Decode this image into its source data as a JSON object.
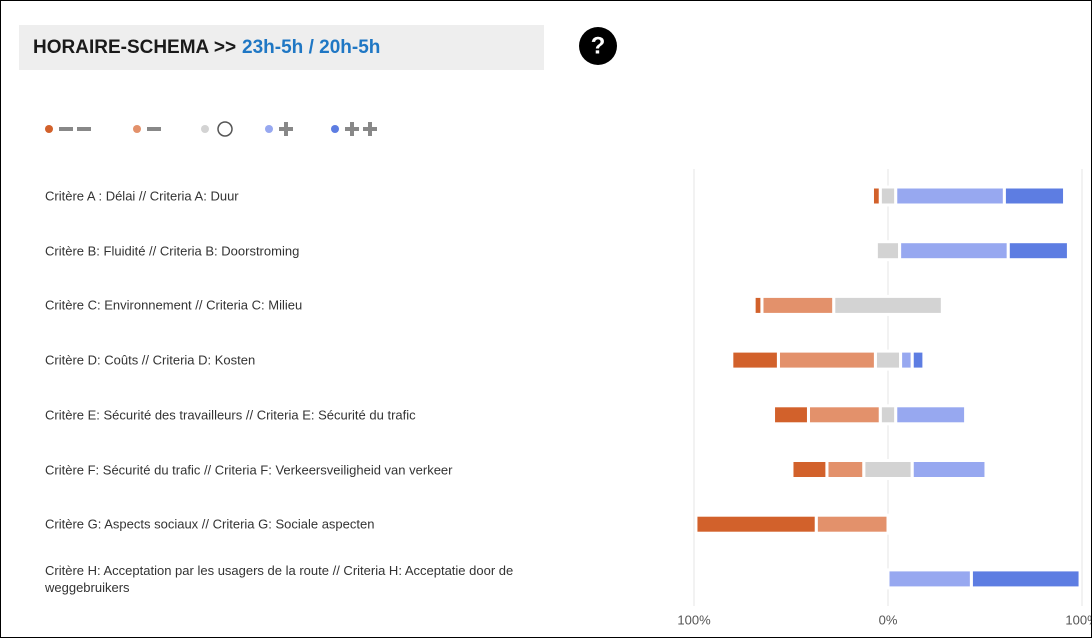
{
  "header": {
    "title": "HORAIRE-SCHEMA >>",
    "title_highlight": "23h-5h / 20h-5h",
    "help_icon": "?"
  },
  "chart_data": {
    "type": "diverging_bar",
    "categories": [
      "Critère A : Délai // Criteria A: Duur",
      "Critère B: Fluidité // Criteria B: Doorstroming",
      "Critère C: Environnement // Criteria C: Milieu",
      "Critère D: Coûts // Criteria D: Kosten",
      "Critère E: Sécurité des travailleurs // Criteria E: Sécurité du trafic",
      "Critère F: Sécurité du trafic // Criteria F: Verkeersveiligheid van verkeer",
      "Critère G: Aspects sociaux // Criteria G: Sociale aspecten",
      "Critère H: Acceptation par les usagers de la route // Criteria H: Acceptatie door de weggebruikers"
    ],
    "series": [
      {
        "color": "#d2612b",
        "values": [
          4,
          0,
          4,
          24,
          18,
          18,
          62,
          0
        ]
      },
      {
        "color": "#e3916b",
        "values": [
          0,
          0,
          37,
          50,
          37,
          19,
          37,
          0
        ]
      },
      {
        "color": "#d3d3d3",
        "values": [
          8,
          12,
          56,
          13,
          8,
          25,
          0,
          0
        ]
      },
      {
        "color": "#97a8f0",
        "values": [
          56,
          56,
          0,
          6,
          36,
          38,
          0,
          43
        ]
      },
      {
        "color": "#5d7de2",
        "values": [
          31,
          31,
          0,
          6,
          0,
          0,
          0,
          56
        ]
      }
    ],
    "center_series": 2,
    "xlim": [
      -100,
      100
    ],
    "xticks": [
      {
        "value": -100,
        "label": "100%"
      },
      {
        "value": 0,
        "label": "0%"
      },
      {
        "value": 100,
        "label": "100%"
      }
    ],
    "grid": true
  }
}
